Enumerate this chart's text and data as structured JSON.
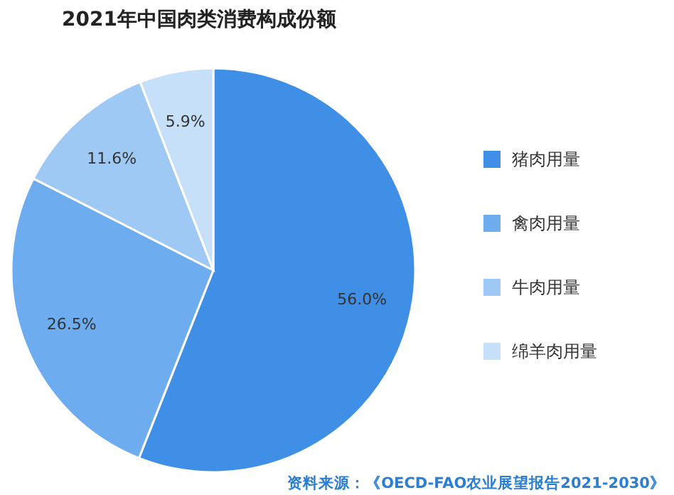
{
  "chart_data": {
    "type": "pie",
    "title": "2021年中国肉类消费构成份额",
    "categories": [
      "猪肉用量",
      "禽肉用量",
      "牛肉用量",
      "绵羊肉用量"
    ],
    "values": [
      56.0,
      26.5,
      11.6,
      5.9
    ],
    "value_labels": [
      "56.0%",
      "26.5%",
      "11.6%",
      "5.9%"
    ],
    "colors": [
      "#3f8fe6",
      "#6dacef",
      "#9dc9f4",
      "#c6e0f9"
    ],
    "legend": "right",
    "annotations": [
      "资料来源：《OECD-FAO农业展望报告2021-2030》"
    ]
  }
}
